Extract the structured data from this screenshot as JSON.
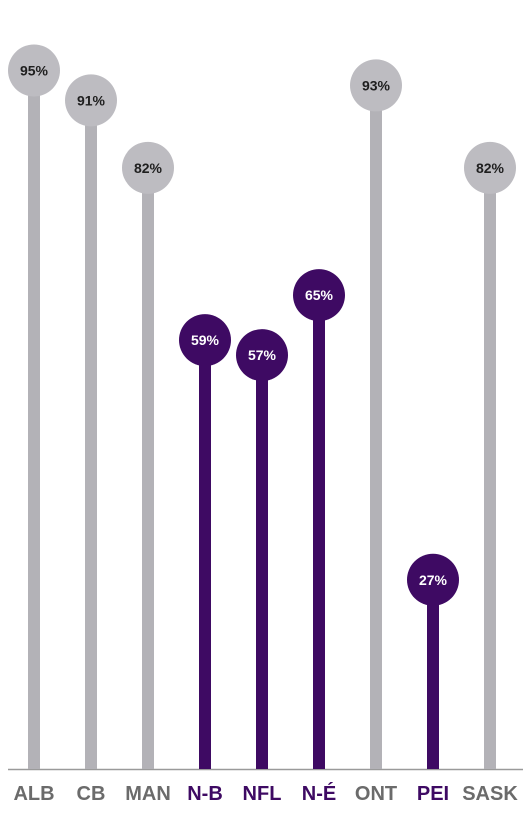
{
  "chart_data": {
    "type": "lollipop",
    "categories": [
      "ALB",
      "CB",
      "MAN",
      "N-B",
      "NFL",
      "N-É",
      "ONT",
      "PEI",
      "SASK"
    ],
    "values": [
      95,
      91,
      82,
      59,
      57,
      65,
      93,
      27,
      82
    ],
    "value_labels": [
      "95%",
      "91%",
      "82%",
      "59%",
      "57%",
      "65%",
      "93%",
      "27%",
      "82%"
    ],
    "highlighted": [
      false,
      false,
      false,
      true,
      true,
      true,
      false,
      true,
      false
    ],
    "ylim": [
      0,
      100
    ],
    "grid": false,
    "colors": {
      "default_stem": "#b3b2b7",
      "default_head": "#bdbcc1",
      "default_value_text": "#1f1f1f",
      "default_category_text": "#6b6b6b",
      "highlight": "#3e0a63",
      "highlight_value_text": "#ffffff",
      "highlight_category_text": "#3e0a63",
      "baseline": "#9a9a9a"
    }
  }
}
